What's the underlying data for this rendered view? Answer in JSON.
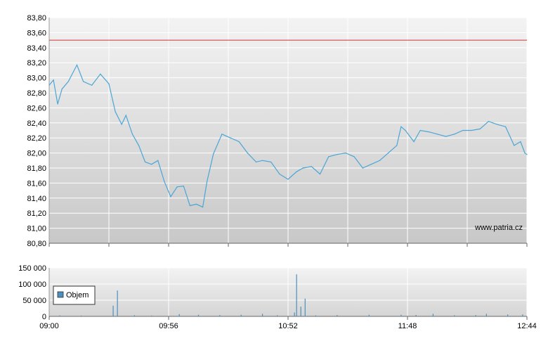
{
  "chart_data": [
    {
      "type": "line",
      "title": "",
      "xlabel": "",
      "ylabel": "",
      "ylim": [
        80.8,
        83.8
      ],
      "y_ticks": [
        "83,80",
        "83,60",
        "83,40",
        "83,20",
        "83,00",
        "82,80",
        "82,60",
        "82,40",
        "82,20",
        "82,00",
        "81,80",
        "81,60",
        "81,40",
        "81,20",
        "81,00",
        "80,80"
      ],
      "reference_line": 83.5,
      "watermark": "www.patria.cz",
      "grid": true,
      "series": [
        {
          "name": "",
          "x": [
            "09:00",
            "09:02",
            "09:04",
            "09:06",
            "09:09",
            "09:13",
            "09:16",
            "09:20",
            "09:24",
            "09:28",
            "09:31",
            "09:34",
            "09:36",
            "09:39",
            "09:42",
            "09:45",
            "09:48",
            "09:51",
            "09:54",
            "09:57",
            "10:00",
            "10:03",
            "10:06",
            "10:09",
            "10:12",
            "10:14",
            "10:17",
            "10:21",
            "10:25",
            "10:29",
            "10:33",
            "10:37",
            "10:40",
            "10:44",
            "10:48",
            "10:52",
            "10:56",
            "10:59",
            "11:03",
            "11:07",
            "11:11",
            "11:15",
            "11:19",
            "11:23",
            "11:27",
            "11:31",
            "11:35",
            "11:39",
            "11:43",
            "11:45",
            "11:47",
            "11:51",
            "11:54",
            "11:58",
            "12:02",
            "12:06",
            "12:10",
            "12:14",
            "12:18",
            "12:22",
            "12:26",
            "12:30",
            "12:34",
            "12:38",
            "12:41",
            "12:43",
            "12:44"
          ],
          "values": [
            82.9,
            82.97,
            82.65,
            82.85,
            82.95,
            83.17,
            82.95,
            82.9,
            83.05,
            82.92,
            82.55,
            82.38,
            82.5,
            82.25,
            82.1,
            81.88,
            81.85,
            81.9,
            81.62,
            81.42,
            81.55,
            81.56,
            81.3,
            81.32,
            81.28,
            81.62,
            81.99,
            82.25,
            82.2,
            82.15,
            82.0,
            81.88,
            81.9,
            81.88,
            81.72,
            81.65,
            81.75,
            81.8,
            81.82,
            81.72,
            81.95,
            81.98,
            82.0,
            81.95,
            81.8,
            81.85,
            81.9,
            82.0,
            82.1,
            82.35,
            82.3,
            82.15,
            82.3,
            82.28,
            82.25,
            82.22,
            82.25,
            82.3,
            82.3,
            82.32,
            82.42,
            82.38,
            82.35,
            82.1,
            82.15,
            82.0,
            81.98
          ]
        }
      ]
    },
    {
      "type": "bar",
      "title": "",
      "ylim": [
        0,
        150000
      ],
      "y_ticks": [
        "150 000",
        "100 000",
        "50 000",
        "0"
      ],
      "x_ticks": [
        "09:00",
        "09:56",
        "10:52",
        "11:48",
        "12:44"
      ],
      "legend": "Objem",
      "legend_position": "left",
      "color": "#4a8fbf",
      "series": [
        {
          "name": "Objem",
          "x": [
            "09:05",
            "09:15",
            "09:30",
            "09:32",
            "09:40",
            "09:48",
            "10:01",
            "10:10",
            "10:20",
            "10:30",
            "10:40",
            "10:47",
            "10:55",
            "10:56",
            "10:58",
            "11:00",
            "11:05",
            "11:15",
            "11:30",
            "11:45",
            "11:52",
            "12:00",
            "12:10",
            "12:20",
            "12:25",
            "12:35",
            "12:42"
          ],
          "values": [
            3000,
            2500,
            33000,
            80000,
            3500,
            2500,
            7000,
            5000,
            4000,
            5000,
            8000,
            3500,
            12000,
            130000,
            30000,
            55000,
            3000,
            4000,
            5000,
            5000,
            4500,
            8000,
            3500,
            4000,
            8000,
            6000,
            6000
          ]
        }
      ]
    }
  ]
}
